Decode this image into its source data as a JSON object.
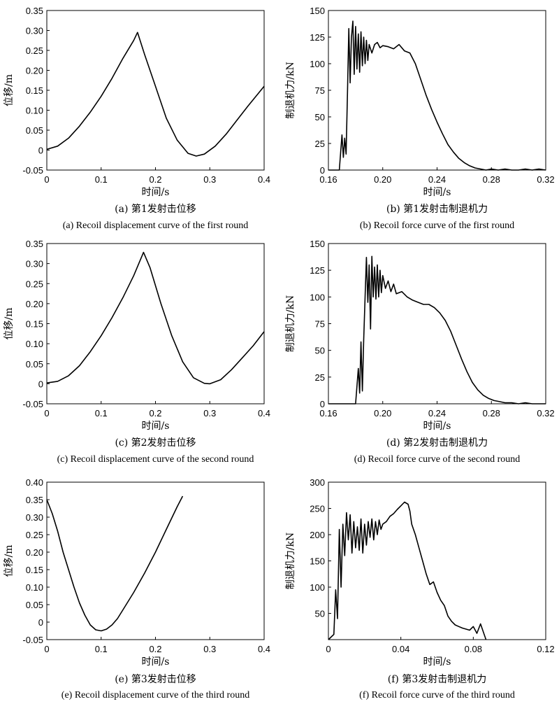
{
  "chart_data": [
    {
      "type": "line",
      "xlabel": "时间/s",
      "ylabel": "位移/m",
      "xlim": [
        0,
        0.4
      ],
      "ylim": [
        -0.05,
        0.35
      ],
      "xticks": [
        "0",
        "0.1",
        "0.2",
        "0.3",
        "0.4"
      ],
      "yticks": [
        "-0.05",
        "0",
        "0.05",
        "0.10",
        "0.15",
        "0.20",
        "0.25",
        "0.30",
        "0.35"
      ],
      "caption_cn": "(a) 第1发射击位移",
      "caption_en": "(a) Recoil displacement curve of the first round",
      "x": [
        0,
        0.02,
        0.04,
        0.06,
        0.08,
        0.1,
        0.12,
        0.14,
        0.16,
        0.167,
        0.18,
        0.2,
        0.22,
        0.24,
        0.26,
        0.275,
        0.29,
        0.31,
        0.33,
        0.35,
        0.37,
        0.4
      ],
      "y": [
        0.002,
        0.01,
        0.03,
        0.06,
        0.095,
        0.135,
        0.18,
        0.23,
        0.275,
        0.295,
        0.24,
        0.16,
        0.08,
        0.025,
        -0.008,
        -0.015,
        -0.01,
        0.01,
        0.04,
        0.075,
        0.11,
        0.16
      ]
    },
    {
      "type": "line",
      "xlabel": "时间/s",
      "ylabel": "制退机力/kN",
      "xlim": [
        0.16,
        0.32
      ],
      "ylim": [
        0,
        150
      ],
      "xticks": [
        "0.16",
        "0.20",
        "0.24",
        "0.28",
        "0.32"
      ],
      "yticks": [
        "0",
        "25",
        "50",
        "75",
        "100",
        "125",
        "150"
      ],
      "caption_cn": "(b) 第1发射击制退机力",
      "caption_en": "(b) Recoil force curve of the first round",
      "x": [
        0.16,
        0.168,
        0.17,
        0.171,
        0.172,
        0.173,
        0.174,
        0.175,
        0.176,
        0.177,
        0.178,
        0.179,
        0.18,
        0.181,
        0.182,
        0.183,
        0.184,
        0.185,
        0.186,
        0.187,
        0.188,
        0.189,
        0.19,
        0.192,
        0.194,
        0.196,
        0.198,
        0.2,
        0.204,
        0.208,
        0.212,
        0.216,
        0.22,
        0.224,
        0.228,
        0.232,
        0.236,
        0.24,
        0.244,
        0.248,
        0.252,
        0.256,
        0.26,
        0.264,
        0.268,
        0.272,
        0.276,
        0.28,
        0.285,
        0.29,
        0.295,
        0.3,
        0.305,
        0.31,
        0.315,
        0.32
      ],
      "y": [
        0,
        0,
        33,
        12,
        30,
        15,
        70,
        133,
        82,
        125,
        140,
        90,
        135,
        95,
        128,
        92,
        130,
        98,
        125,
        100,
        122,
        103,
        118,
        110,
        118,
        120,
        115,
        117,
        116,
        114,
        118,
        112,
        110,
        100,
        85,
        70,
        57,
        45,
        34,
        24,
        17,
        11,
        7,
        4,
        2,
        1,
        0,
        1,
        0,
        1,
        0,
        0,
        1,
        0,
        1,
        0
      ]
    },
    {
      "type": "line",
      "xlabel": "时间/s",
      "ylabel": "位移/m",
      "xlim": [
        0,
        0.4
      ],
      "ylim": [
        -0.05,
        0.35
      ],
      "xticks": [
        "0",
        "0.1",
        "0.2",
        "0.3",
        "0.4"
      ],
      "yticks": [
        "-0.05",
        "0",
        "0.05",
        "0.10",
        "0.15",
        "0.20",
        "0.25",
        "0.30",
        "0.35"
      ],
      "caption_cn": "(c) 第2发射击位移",
      "caption_en": "(c) Recoil displacement curve of the second round",
      "x": [
        0,
        0.02,
        0.04,
        0.06,
        0.08,
        0.1,
        0.12,
        0.14,
        0.16,
        0.178,
        0.19,
        0.21,
        0.23,
        0.25,
        0.27,
        0.29,
        0.3,
        0.32,
        0.34,
        0.36,
        0.38,
        0.4
      ],
      "y": [
        0.002,
        0.006,
        0.02,
        0.045,
        0.08,
        0.12,
        0.165,
        0.215,
        0.27,
        0.328,
        0.29,
        0.2,
        0.12,
        0.055,
        0.015,
        0.001,
        0.0,
        0.01,
        0.035,
        0.065,
        0.095,
        0.13
      ]
    },
    {
      "type": "line",
      "xlabel": "时间/s",
      "ylabel": "制退机力/kN",
      "xlim": [
        0.16,
        0.32
      ],
      "ylim": [
        0,
        150
      ],
      "xticks": [
        "0.16",
        "0.20",
        "0.24",
        "0.28",
        "0.32"
      ],
      "yticks": [
        "0",
        "25",
        "50",
        "75",
        "100",
        "125",
        "150"
      ],
      "caption_cn": "(d) 第2发射击制退机力",
      "caption_en": "(d) Recoil force curve of the second round",
      "x": [
        0.16,
        0.18,
        0.182,
        0.183,
        0.184,
        0.185,
        0.186,
        0.187,
        0.188,
        0.189,
        0.19,
        0.191,
        0.192,
        0.193,
        0.194,
        0.195,
        0.196,
        0.197,
        0.198,
        0.199,
        0.2,
        0.202,
        0.204,
        0.206,
        0.208,
        0.21,
        0.214,
        0.218,
        0.222,
        0.226,
        0.23,
        0.234,
        0.238,
        0.242,
        0.246,
        0.25,
        0.254,
        0.258,
        0.262,
        0.266,
        0.27,
        0.274,
        0.278,
        0.282,
        0.286,
        0.29,
        0.295,
        0.3,
        0.305,
        0.31,
        0.32
      ],
      "y": [
        0,
        0,
        33,
        10,
        58,
        12,
        60,
        100,
        137,
        95,
        130,
        70,
        138,
        100,
        128,
        98,
        130,
        100,
        125,
        104,
        120,
        108,
        115,
        105,
        112,
        103,
        105,
        100,
        97,
        95,
        93,
        93,
        90,
        85,
        78,
        68,
        55,
        42,
        30,
        20,
        13,
        8,
        5,
        3,
        2,
        1,
        1,
        0,
        1,
        0,
        0
      ]
    },
    {
      "type": "line",
      "xlabel": "时间/s",
      "ylabel": "位移/m",
      "xlim": [
        0,
        0.4
      ],
      "ylim": [
        -0.05,
        0.4
      ],
      "xticks": [
        "0",
        "0.1",
        "0.2",
        "0.3",
        "0.4"
      ],
      "yticks": [
        "-0.05",
        "0",
        "0.05",
        "0.10",
        "0.15",
        "0.20",
        "0.25",
        "0.30",
        "0.35",
        "0.40"
      ],
      "caption_cn": "(e) 第3发射击位移",
      "caption_en": "(e) Recoil displacement curve of the third round",
      "x": [
        0,
        0.01,
        0.02,
        0.03,
        0.04,
        0.05,
        0.06,
        0.07,
        0.08,
        0.09,
        0.1,
        0.11,
        0.12,
        0.13,
        0.14,
        0.16,
        0.18,
        0.2,
        0.22,
        0.24,
        0.25
      ],
      "y": [
        0.35,
        0.31,
        0.26,
        0.2,
        0.15,
        0.1,
        0.055,
        0.02,
        -0.008,
        -0.022,
        -0.025,
        -0.02,
        -0.008,
        0.01,
        0.035,
        0.085,
        0.14,
        0.2,
        0.265,
        0.33,
        0.36
      ]
    },
    {
      "type": "line",
      "xlabel": "时间/s",
      "ylabel": "制退机力/kN",
      "xlim": [
        0,
        0.12
      ],
      "ylim": [
        0,
        300
      ],
      "xticks": [
        "0",
        "0.04",
        "0.08",
        "0.12"
      ],
      "yticks": [
        "50",
        "100",
        "150",
        "200",
        "250",
        "300"
      ],
      "caption_cn": "(f) 第3发射击制退机力",
      "caption_en": "(f) Recoil force curve of the third round",
      "x": [
        0,
        0.003,
        0.004,
        0.005,
        0.006,
        0.007,
        0.008,
        0.009,
        0.01,
        0.011,
        0.012,
        0.013,
        0.014,
        0.015,
        0.016,
        0.017,
        0.018,
        0.019,
        0.02,
        0.021,
        0.022,
        0.023,
        0.024,
        0.025,
        0.026,
        0.027,
        0.028,
        0.029,
        0.03,
        0.032,
        0.034,
        0.036,
        0.038,
        0.04,
        0.042,
        0.044,
        0.045,
        0.046,
        0.048,
        0.05,
        0.052,
        0.054,
        0.056,
        0.058,
        0.06,
        0.062,
        0.064,
        0.066,
        0.068,
        0.07,
        0.072,
        0.074,
        0.076,
        0.078,
        0.08,
        0.082,
        0.084,
        0.086,
        0.087
      ],
      "y": [
        0,
        10,
        95,
        40,
        210,
        100,
        220,
        160,
        242,
        190,
        238,
        165,
        225,
        175,
        215,
        170,
        230,
        165,
        220,
        180,
        225,
        195,
        230,
        190,
        225,
        200,
        228,
        210,
        220,
        225,
        235,
        240,
        248,
        255,
        262,
        258,
        245,
        220,
        200,
        175,
        150,
        125,
        105,
        110,
        90,
        75,
        65,
        45,
        35,
        28,
        25,
        22,
        20,
        18,
        25,
        12,
        30,
        10,
        0
      ]
    }
  ]
}
